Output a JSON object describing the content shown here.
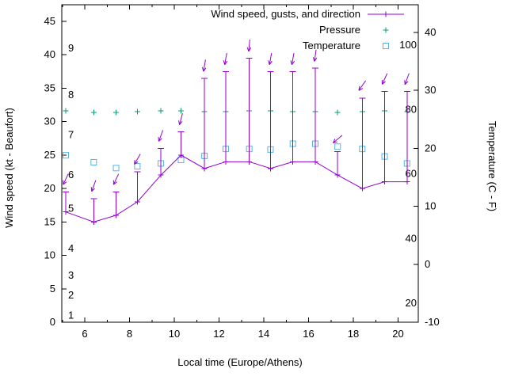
{
  "window": {
    "background": "#ffffff"
  },
  "axes": {
    "x": {
      "label": "Local time (Europe/Athens)",
      "major_ticks": [
        6,
        8,
        10,
        12,
        14,
        16,
        18,
        20
      ],
      "minor_ticks": [
        5,
        7,
        9,
        11,
        13,
        15,
        17,
        19,
        21
      ]
    },
    "y_left": {
      "label": "Wind speed (kt - Beaufort)",
      "major_ticks": [
        0,
        5,
        10,
        15,
        20,
        25,
        30,
        35,
        40,
        45
      ],
      "beaufort_scale_labels": [
        {
          "label": "1",
          "kt": 1
        },
        {
          "label": "2",
          "kt": 4
        },
        {
          "label": "3",
          "kt": 7
        },
        {
          "label": "4",
          "kt": 11
        },
        {
          "label": "5",
          "kt": 17
        },
        {
          "label": "6",
          "kt": 22
        },
        {
          "label": "7",
          "kt": 28
        },
        {
          "label": "8",
          "kt": 34
        },
        {
          "label": "9",
          "kt": 41
        }
      ]
    },
    "y_right": {
      "label": "Temperature (C - F)",
      "major_ticks_celsius": [
        -10,
        0,
        10,
        20,
        30,
        40
      ],
      "fahrenheit_scale_labels": [
        {
          "label": "20",
          "celsius": -6.7
        },
        {
          "label": "40",
          "celsius": 4.4
        },
        {
          "label": "60",
          "celsius": 15.6
        },
        {
          "label": "80",
          "celsius": 26.7
        },
        {
          "label": "100",
          "celsius": 37.8
        }
      ]
    }
  },
  "legend": {
    "entries": [
      {
        "label": "Wind speed, gusts, and direction",
        "series": "wind"
      },
      {
        "label": "Pressure",
        "series": "pressure"
      },
      {
        "label": "Temperature",
        "series": "temperature"
      }
    ]
  },
  "colors": {
    "wind": "#9400d3",
    "pressure": "#009e73",
    "temperature": "#56b4e9",
    "axis": "#000000",
    "background": "#ffffff"
  },
  "chart_data": {
    "type": "line",
    "title": "",
    "xlabel": "Local time (Europe/Athens)",
    "ylabel_left": "Wind speed (kt - Beaufort)",
    "ylabel_right": "Temperature (C - F)",
    "xlim": [
      4.97,
      20.93
    ],
    "ylim_left_kt": [
      0,
      47.6
    ],
    "ylim_right_celsius": [
      -10,
      44.9
    ],
    "grid": false,
    "legend_position": "top-right-inside",
    "x_hours": [
      5.15,
      6.4,
      7.4,
      8.35,
      9.4,
      10.3,
      11.35,
      12.3,
      13.35,
      14.3,
      15.3,
      16.3,
      17.3,
      18.4,
      19.4,
      20.4
    ],
    "series": [
      {
        "name": "wind_speed_kt",
        "axis": "left",
        "values": [
          16.5,
          15,
          16,
          18,
          22,
          25,
          23,
          24,
          24,
          23,
          24,
          24,
          22,
          20,
          21,
          21
        ]
      },
      {
        "name": "wind_gust_kt",
        "axis": "left",
        "values": [
          19.5,
          18.5,
          19.5,
          22.5,
          26,
          28.5,
          36.5,
          37.5,
          39.5,
          37.5,
          37.5,
          38,
          25.5,
          33.5,
          34.5,
          34.5
        ]
      },
      {
        "name": "wind_direction_pointing_deg",
        "axis": "none",
        "values": [
          205,
          200,
          205,
          210,
          200,
          195,
          190,
          190,
          185,
          190,
          190,
          188,
          230,
          215,
          205,
          200
        ]
      },
      {
        "name": "pressure_marker_left_axis_units",
        "axis": "left",
        "values": [
          31.6,
          31.4,
          31.4,
          31.5,
          31.6,
          31.6,
          31.5,
          31.5,
          31.6,
          31.6,
          31.5,
          31.5,
          31.4,
          31.5,
          31.6,
          31.5
        ]
      },
      {
        "name": "temperature_c",
        "axis": "right",
        "values": [
          18.8,
          17.6,
          16.6,
          16.9,
          17.4,
          18.0,
          18.7,
          19.9,
          19.9,
          19.8,
          20.8,
          20.8,
          20.3,
          19.9,
          18.6,
          17.4
        ]
      }
    ]
  }
}
